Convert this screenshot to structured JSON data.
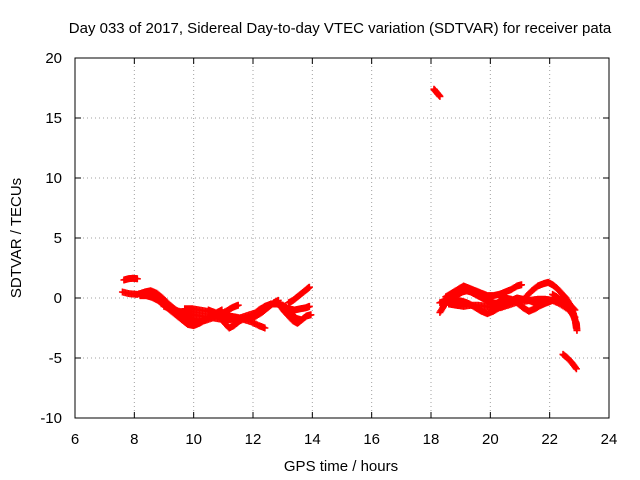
{
  "chart_data": {
    "type": "scatter",
    "title": "Day 033 of 2017, Sidereal Day-to-day VTEC variation (SDTVAR) for receiver pata",
    "xlabel": "GPS time / hours",
    "ylabel": "SDTVAR / TECUs",
    "xlim": [
      6,
      24
    ],
    "ylim": [
      -10,
      20
    ],
    "xticks": [
      "6",
      "8",
      "10",
      "12",
      "14",
      "16",
      "18",
      "20",
      "22",
      "24"
    ],
    "yticks": [
      "-10",
      "-5",
      "0",
      "5",
      "10",
      "15",
      "20"
    ],
    "grid": true,
    "marker": "+",
    "series": [
      {
        "name": "SDTVAR",
        "color": "#ff0000",
        "tracks": [
          [
            [
              7.65,
              1.5
            ],
            [
              7.8,
              1.6
            ],
            [
              7.95,
              1.65
            ],
            [
              8.1,
              1.6
            ]
          ],
          [
            [
              7.6,
              0.5
            ],
            [
              7.85,
              0.35
            ],
            [
              8.1,
              0.3
            ],
            [
              8.35,
              0.5
            ],
            [
              8.55,
              0.6
            ],
            [
              8.75,
              0.4
            ],
            [
              8.95,
              0.0
            ],
            [
              9.15,
              -0.5
            ],
            [
              9.35,
              -0.9
            ],
            [
              9.55,
              -1.3
            ],
            [
              9.75,
              -1.6
            ],
            [
              9.95,
              -1.9
            ],
            [
              10.15,
              -2.0
            ],
            [
              10.35,
              -1.9
            ],
            [
              10.6,
              -1.7
            ],
            [
              10.85,
              -1.4
            ],
            [
              11.1,
              -1.1
            ],
            [
              11.3,
              -0.8
            ],
            [
              11.5,
              -0.6
            ]
          ],
          [
            [
              8.2,
              0.2
            ],
            [
              8.4,
              0.2
            ],
            [
              8.6,
              0.05
            ],
            [
              8.8,
              -0.2
            ],
            [
              9.0,
              -0.6
            ],
            [
              9.2,
              -1.0
            ],
            [
              9.4,
              -1.4
            ],
            [
              9.6,
              -1.8
            ],
            [
              9.8,
              -2.2
            ],
            [
              10.0,
              -2.3
            ],
            [
              10.2,
              -2.1
            ],
            [
              10.4,
              -1.8
            ],
            [
              10.6,
              -1.5
            ],
            [
              10.8,
              -1.2
            ],
            [
              10.95,
              -1.0
            ]
          ],
          [
            [
              9.0,
              -0.7
            ],
            [
              9.25,
              -0.9
            ],
            [
              9.5,
              -1.1
            ],
            [
              9.75,
              -1.3
            ],
            [
              10.0,
              -1.4
            ],
            [
              10.25,
              -1.5
            ],
            [
              10.5,
              -1.6
            ],
            [
              10.75,
              -1.7
            ],
            [
              11.0,
              -1.8
            ],
            [
              11.25,
              -1.8
            ],
            [
              11.5,
              -1.7
            ],
            [
              11.75,
              -1.5
            ],
            [
              12.0,
              -1.3
            ],
            [
              12.2,
              -1.2
            ]
          ],
          [
            [
              9.7,
              -0.9
            ],
            [
              9.95,
              -0.9
            ],
            [
              10.2,
              -1.0
            ],
            [
              10.45,
              -1.1
            ],
            [
              10.7,
              -1.2
            ],
            [
              10.95,
              -1.4
            ],
            [
              11.2,
              -1.5
            ],
            [
              11.45,
              -1.6
            ],
            [
              11.7,
              -1.8
            ],
            [
              11.95,
              -2.0
            ],
            [
              12.2,
              -2.3
            ],
            [
              12.4,
              -2.5
            ]
          ],
          [
            [
              10.5,
              -1.0
            ],
            [
              10.7,
              -1.2
            ],
            [
              10.9,
              -1.6
            ],
            [
              11.05,
              -2.1
            ],
            [
              11.2,
              -2.5
            ],
            [
              11.35,
              -2.3
            ],
            [
              11.5,
              -2.0
            ],
            [
              11.7,
              -1.7
            ],
            [
              11.9,
              -1.7
            ],
            [
              12.1,
              -1.5
            ],
            [
              12.3,
              -1.2
            ],
            [
              12.5,
              -0.8
            ],
            [
              12.7,
              -0.4
            ],
            [
              12.85,
              -0.2
            ]
          ],
          [
            [
              12.0,
              -1.4
            ],
            [
              12.2,
              -1.0
            ],
            [
              12.4,
              -0.7
            ],
            [
              12.6,
              -0.5
            ],
            [
              12.8,
              -0.5
            ],
            [
              13.0,
              -0.6
            ],
            [
              13.2,
              -0.9
            ],
            [
              13.4,
              -1.0
            ],
            [
              13.6,
              -0.9
            ],
            [
              13.8,
              -0.8
            ],
            [
              13.9,
              -0.7
            ]
          ],
          [
            [
              12.9,
              -0.6
            ],
            [
              13.05,
              -1.1
            ],
            [
              13.2,
              -1.5
            ],
            [
              13.35,
              -1.9
            ],
            [
              13.5,
              -2.1
            ],
            [
              13.65,
              -1.8
            ],
            [
              13.8,
              -1.5
            ],
            [
              13.95,
              -1.4
            ]
          ],
          [
            [
              13.0,
              -0.6
            ],
            [
              13.15,
              -0.9
            ],
            [
              13.3,
              -1.3
            ],
            [
              13.45,
              -1.7
            ],
            [
              13.6,
              -1.8
            ]
          ],
          [
            [
              13.2,
              -0.4
            ],
            [
              13.35,
              -0.2
            ],
            [
              13.5,
              0.1
            ],
            [
              13.65,
              0.4
            ],
            [
              13.8,
              0.7
            ],
            [
              13.9,
              0.9
            ]
          ],
          [
            [
              18.1,
              17.4
            ],
            [
              18.2,
              17.1
            ],
            [
              18.3,
              16.8
            ]
          ],
          [
            [
              18.3,
              -1.2
            ],
            [
              18.45,
              -0.6
            ],
            [
              18.6,
              -0.2
            ],
            [
              18.75,
              0.1
            ],
            [
              18.9,
              0.3
            ],
            [
              19.05,
              0.5
            ],
            [
              19.2,
              0.6
            ],
            [
              19.35,
              0.5
            ],
            [
              19.5,
              0.3
            ],
            [
              19.65,
              0.1
            ],
            [
              19.8,
              -0.1
            ],
            [
              19.95,
              -0.3
            ],
            [
              20.1,
              -0.4
            ],
            [
              20.3,
              -0.5
            ],
            [
              20.5,
              -0.4
            ]
          ],
          [
            [
              18.3,
              -0.4
            ],
            [
              18.5,
              -0.2
            ],
            [
              18.7,
              -0.1
            ],
            [
              18.9,
              -0.2
            ],
            [
              19.1,
              -0.3
            ],
            [
              19.3,
              -0.5
            ],
            [
              19.5,
              -0.8
            ],
            [
              19.7,
              -1.1
            ],
            [
              19.9,
              -1.3
            ],
            [
              20.1,
              -1.1
            ],
            [
              20.3,
              -0.8
            ],
            [
              20.5,
              -0.5
            ],
            [
              20.7,
              -0.2
            ],
            [
              20.9,
              0.0
            ],
            [
              21.1,
              -0.1
            ],
            [
              21.3,
              -0.2
            ],
            [
              21.5,
              -0.4
            ],
            [
              21.7,
              -0.6
            ],
            [
              21.9,
              -0.4
            ],
            [
              22.1,
              -0.2
            ],
            [
              22.3,
              -0.1
            ],
            [
              22.5,
              -0.2
            ],
            [
              22.7,
              -0.6
            ],
            [
              22.85,
              -1.0
            ]
          ],
          [
            [
              18.5,
              0.1
            ],
            [
              18.7,
              0.4
            ],
            [
              18.9,
              0.7
            ],
            [
              19.1,
              1.0
            ],
            [
              19.3,
              0.8
            ],
            [
              19.5,
              0.6
            ],
            [
              19.7,
              0.4
            ],
            [
              19.9,
              0.2
            ],
            [
              20.1,
              0.2
            ],
            [
              20.3,
              0.3
            ],
            [
              20.5,
              0.5
            ],
            [
              20.7,
              0.7
            ],
            [
              20.9,
              1.0
            ],
            [
              21.05,
              1.1
            ]
          ],
          [
            [
              18.6,
              -0.5
            ],
            [
              18.85,
              -0.6
            ],
            [
              19.1,
              -0.7
            ],
            [
              19.35,
              -0.6
            ],
            [
              19.6,
              -0.6
            ],
            [
              19.85,
              -0.7
            ],
            [
              20.1,
              -0.8
            ],
            [
              20.35,
              -0.8
            ],
            [
              20.6,
              -0.6
            ],
            [
              20.85,
              -0.4
            ],
            [
              21.1,
              -0.3
            ],
            [
              21.35,
              -0.2
            ],
            [
              21.6,
              -0.1
            ],
            [
              21.85,
              -0.1
            ],
            [
              22.1,
              -0.2
            ],
            [
              22.35,
              -0.5
            ],
            [
              22.6,
              -0.9
            ],
            [
              22.8,
              -1.3
            ]
          ],
          [
            [
              20.3,
              -0.2
            ],
            [
              20.5,
              0.0
            ],
            [
              20.7,
              -0.1
            ],
            [
              20.9,
              -0.4
            ],
            [
              21.1,
              -0.8
            ],
            [
              21.3,
              -1.1
            ],
            [
              21.5,
              -0.9
            ],
            [
              21.7,
              -0.6
            ],
            [
              21.9,
              -0.3
            ],
            [
              22.1,
              -0.2
            ],
            [
              22.3,
              -0.3
            ],
            [
              22.5,
              -0.6
            ],
            [
              22.7,
              -1.1
            ],
            [
              22.85,
              -1.6
            ]
          ],
          [
            [
              21.2,
              0.1
            ],
            [
              21.4,
              0.6
            ],
            [
              21.6,
              1.0
            ],
            [
              21.8,
              1.2
            ],
            [
              21.95,
              1.3
            ],
            [
              22.1,
              1.1
            ],
            [
              22.25,
              0.8
            ],
            [
              22.4,
              0.4
            ],
            [
              22.55,
              0.0
            ],
            [
              22.7,
              -0.6
            ],
            [
              22.8,
              -1.3
            ],
            [
              22.87,
              -2.0
            ],
            [
              22.9,
              -2.5
            ]
          ],
          [
            [
              22.1,
              0.3
            ],
            [
              22.3,
              0.0
            ],
            [
              22.5,
              -0.4
            ],
            [
              22.65,
              -0.9
            ],
            [
              22.8,
              -1.5
            ],
            [
              22.9,
              -2.1
            ],
            [
              22.92,
              -2.7
            ]
          ],
          [
            [
              22.45,
              -4.7
            ],
            [
              22.6,
              -5.0
            ],
            [
              22.75,
              -5.4
            ],
            [
              22.9,
              -5.9
            ]
          ]
        ]
      }
    ]
  }
}
